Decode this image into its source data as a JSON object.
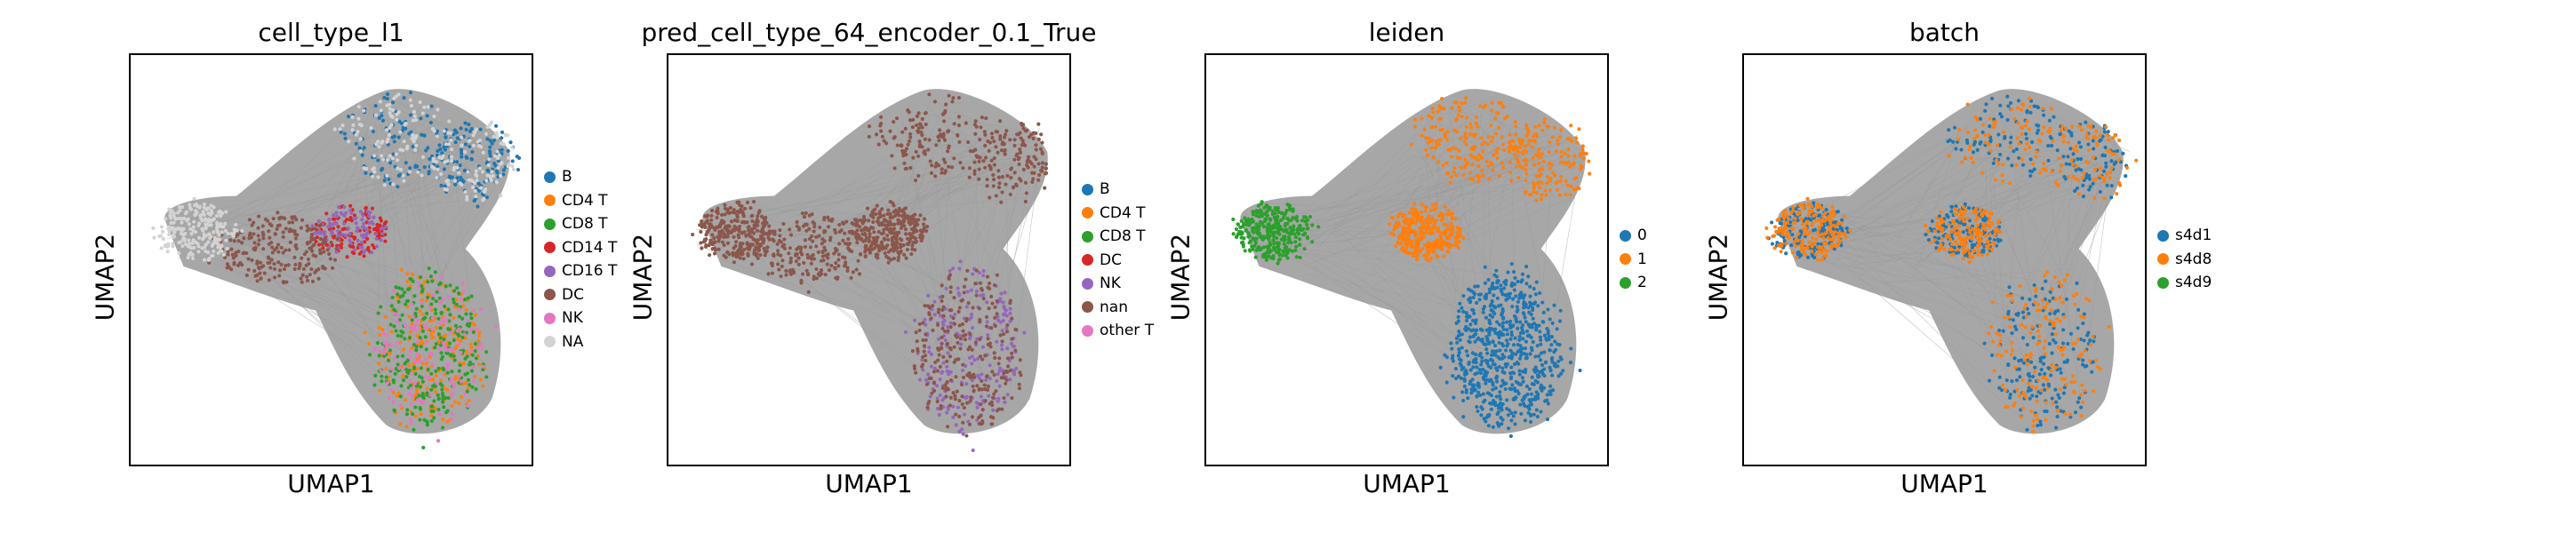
{
  "chart_data": [
    {
      "type": "scatter",
      "title": "cell_type_l1",
      "xlabel": "UMAP1",
      "ylabel": "UMAP2",
      "grid": false,
      "ticks": false,
      "legend_position": "right",
      "series": [
        {
          "name": "B",
          "color": "#1f77b4"
        },
        {
          "name": "CD4 T",
          "color": "#ff7f0e"
        },
        {
          "name": "CD8 T",
          "color": "#2ca02c"
        },
        {
          "name": "CD14 T",
          "color": "#d62728"
        },
        {
          "name": "CD16 T",
          "color": "#9467bd"
        },
        {
          "name": "DC",
          "color": "#8c564b"
        },
        {
          "name": "NK",
          "color": "#e377c2"
        },
        {
          "name": "NA",
          "color": "#d3d3d3"
        }
      ]
    },
    {
      "type": "scatter",
      "title": "pred_cell_type_64_encoder_0.1_True",
      "xlabel": "UMAP1",
      "ylabel": "UMAP2",
      "grid": false,
      "ticks": false,
      "legend_position": "right",
      "series": [
        {
          "name": "B",
          "color": "#1f77b4"
        },
        {
          "name": "CD4 T",
          "color": "#ff7f0e"
        },
        {
          "name": "CD8 T",
          "color": "#2ca02c"
        },
        {
          "name": "DC",
          "color": "#d62728"
        },
        {
          "name": "NK",
          "color": "#9467bd"
        },
        {
          "name": "nan",
          "color": "#8c564b"
        },
        {
          "name": "other T",
          "color": "#e377c2"
        }
      ]
    },
    {
      "type": "scatter",
      "title": "leiden",
      "xlabel": "UMAP1",
      "ylabel": "UMAP2",
      "grid": false,
      "ticks": false,
      "legend_position": "right",
      "series": [
        {
          "name": "0",
          "color": "#1f77b4"
        },
        {
          "name": "1",
          "color": "#ff7f0e"
        },
        {
          "name": "2",
          "color": "#2ca02c"
        }
      ]
    },
    {
      "type": "scatter",
      "title": "batch",
      "xlabel": "UMAP1",
      "ylabel": "UMAP2",
      "grid": false,
      "ticks": false,
      "legend_position": "right",
      "series": [
        {
          "name": "s4d1",
          "color": "#1f77b4"
        },
        {
          "name": "s4d8",
          "color": "#ff7f0e"
        },
        {
          "name": "s4d9",
          "color": "#2ca02c"
        }
      ]
    }
  ]
}
